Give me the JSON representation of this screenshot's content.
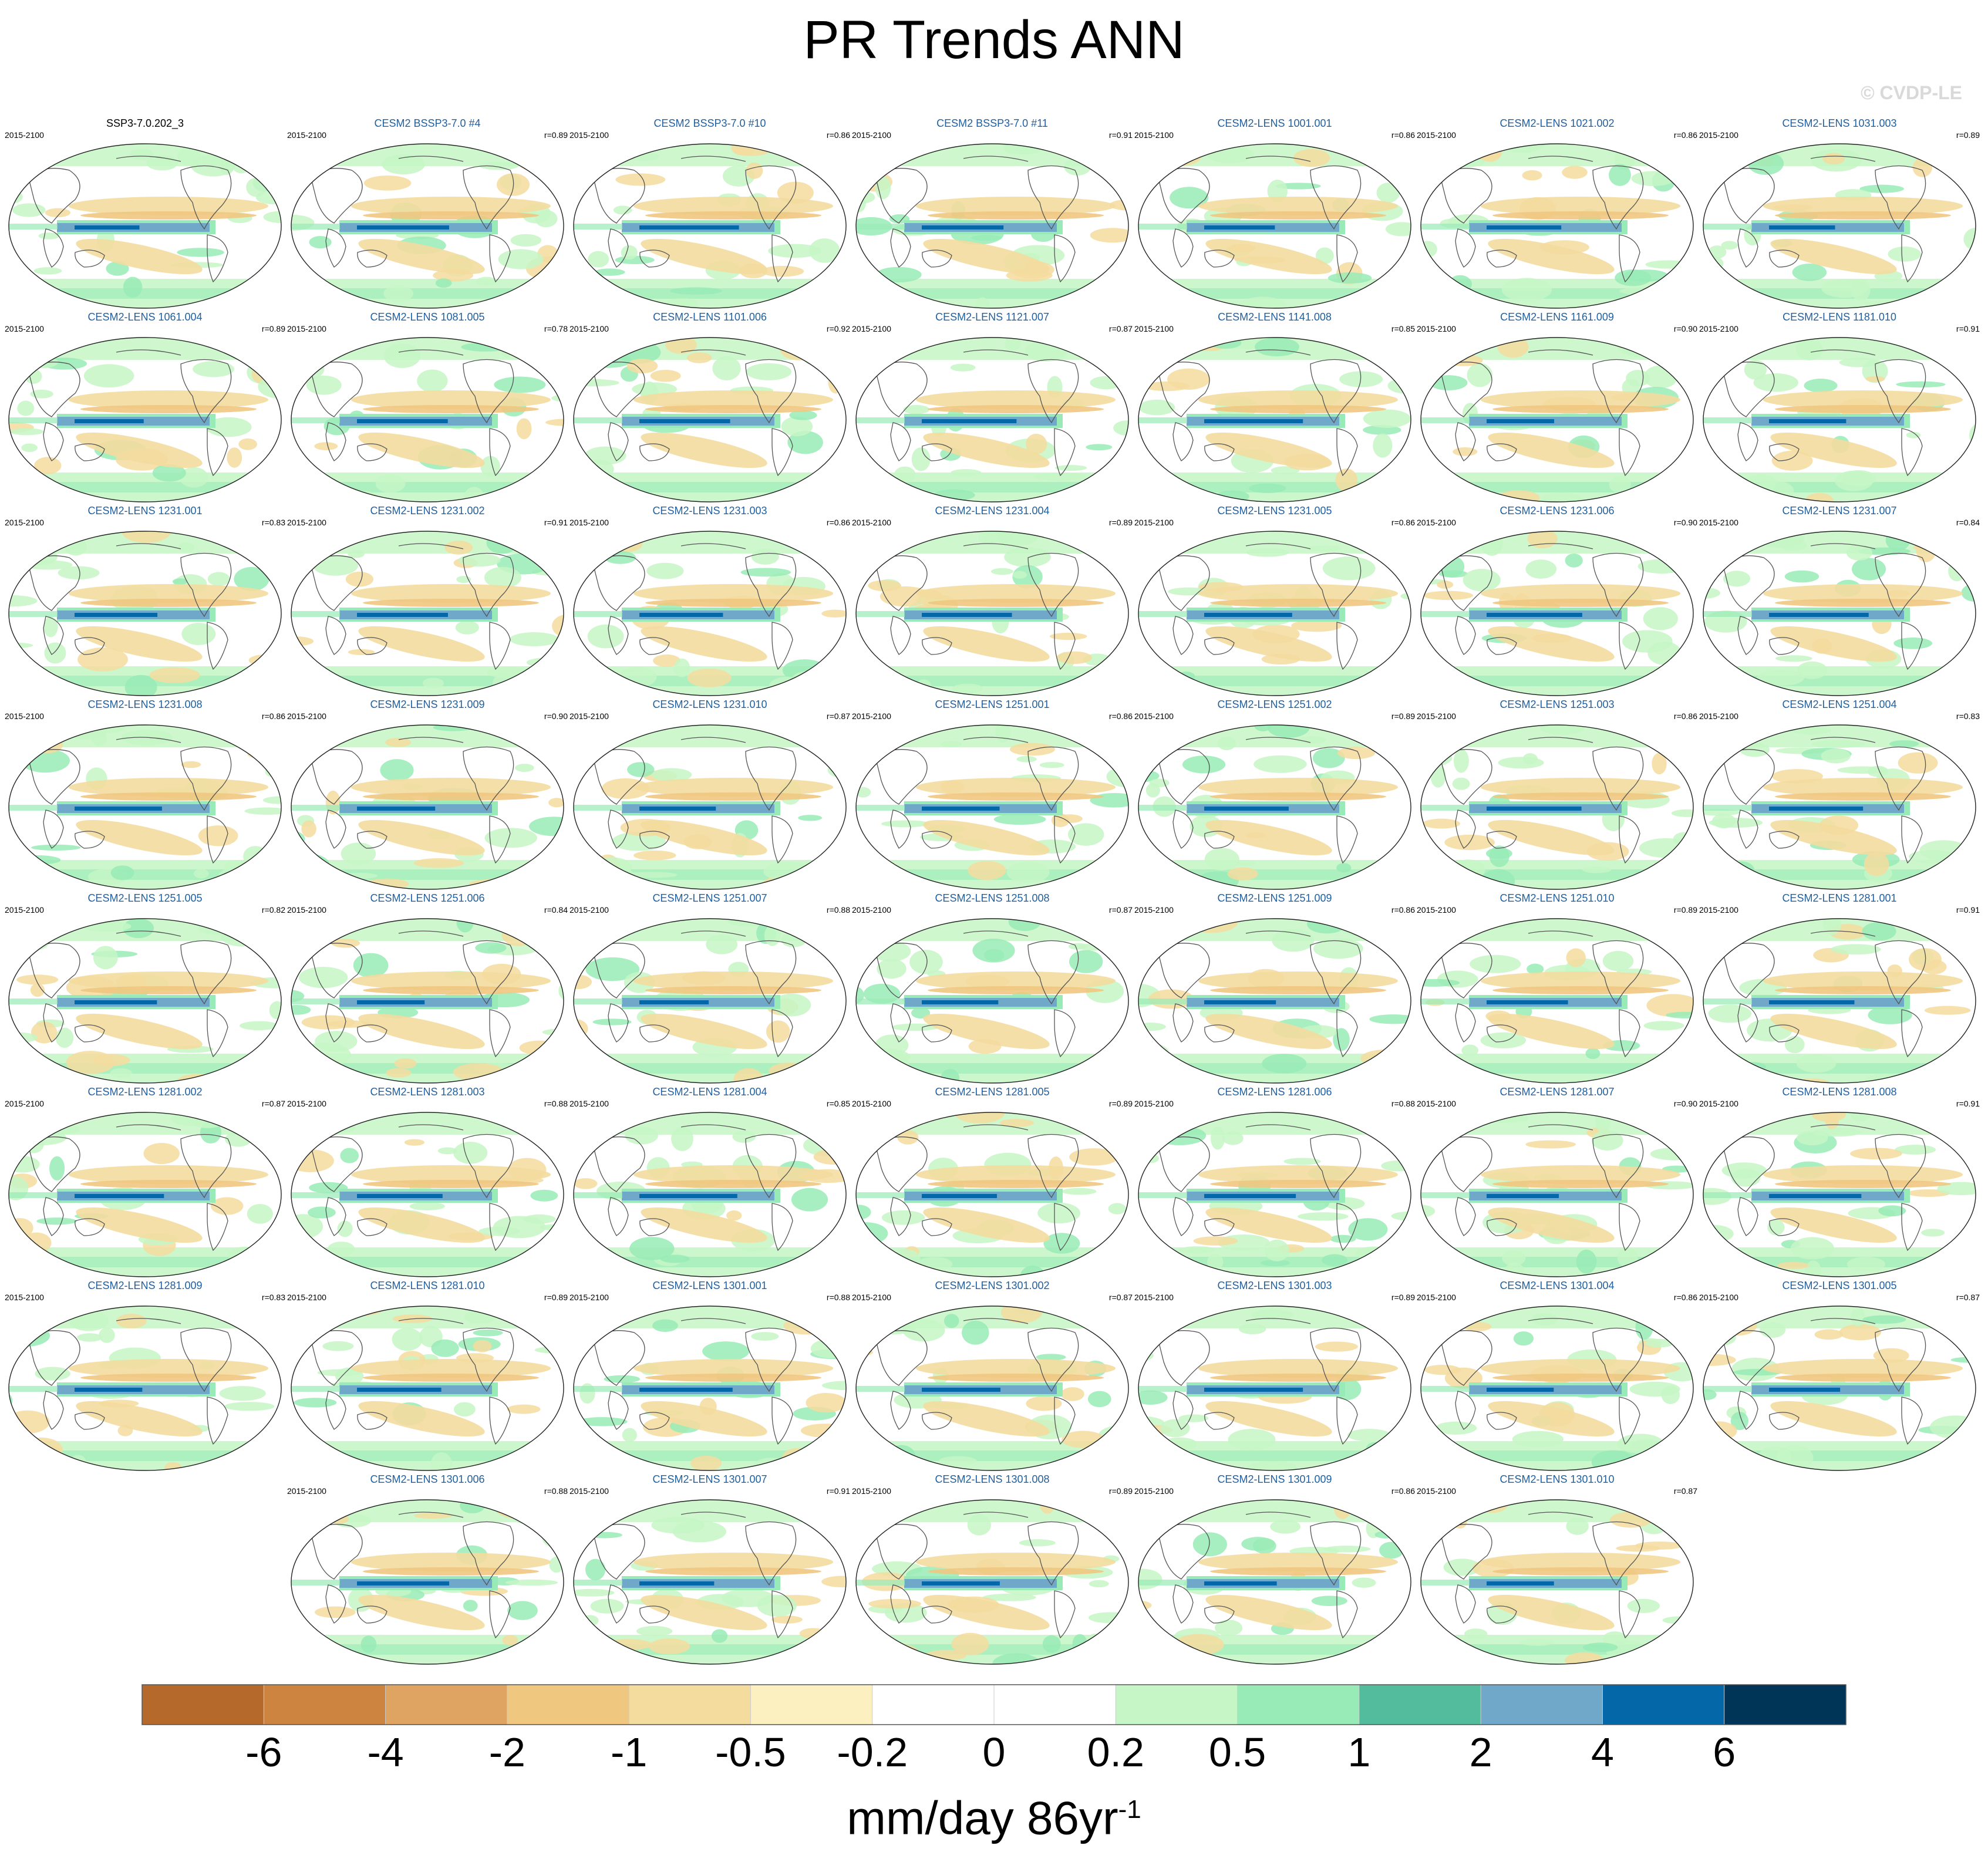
{
  "title": "PR Trends ANN",
  "watermark": "© CVDP-LE",
  "chart_data": {
    "type": "heatmap",
    "title": "PR Trends ANN",
    "panel_period": "2015-2100",
    "units_label": "mm/day 86yr",
    "units_exponent": "-1",
    "colorbar": {
      "tick_labels": [
        "-6",
        "-4",
        "-2",
        "-1",
        "-0.5",
        "-0.2",
        "0",
        "0.2",
        "0.5",
        "1",
        "2",
        "4",
        "6"
      ],
      "colors": [
        "#b5692a",
        "#cd8441",
        "#dfa362",
        "#f0c77f",
        "#f4dc9f",
        "#fdf0c0",
        "#ffffff",
        "#ffffff",
        "#c6f6c6",
        "#98ebb6",
        "#52bc9c",
        "#6fa8c8",
        "#0468a8",
        "#003558"
      ]
    },
    "panels": [
      {
        "name": "SSP3-7.0.202_3",
        "r": ""
      },
      {
        "name": "CESM2 BSSP3-7.0 #4",
        "r": "r=0.89"
      },
      {
        "name": "CESM2 BSSP3-7.0 #10",
        "r": "r=0.86"
      },
      {
        "name": "CESM2 BSSP3-7.0 #11",
        "r": "r=0.91"
      },
      {
        "name": "CESM2-LENS 1001.001",
        "r": "r=0.86"
      },
      {
        "name": "CESM2-LENS 1021.002",
        "r": "r=0.86"
      },
      {
        "name": "CESM2-LENS 1031.003",
        "r": "r=0.89"
      },
      {
        "name": "CESM2-LENS 1061.004",
        "r": "r=0.89"
      },
      {
        "name": "CESM2-LENS 1081.005",
        "r": "r=0.78"
      },
      {
        "name": "CESM2-LENS 1101.006",
        "r": "r=0.92"
      },
      {
        "name": "CESM2-LENS 1121.007",
        "r": "r=0.87"
      },
      {
        "name": "CESM2-LENS 1141.008",
        "r": "r=0.85"
      },
      {
        "name": "CESM2-LENS 1161.009",
        "r": "r=0.90"
      },
      {
        "name": "CESM2-LENS 1181.010",
        "r": "r=0.91"
      },
      {
        "name": "CESM2-LENS 1231.001",
        "r": "r=0.83"
      },
      {
        "name": "CESM2-LENS 1231.002",
        "r": "r=0.91"
      },
      {
        "name": "CESM2-LENS 1231.003",
        "r": "r=0.86"
      },
      {
        "name": "CESM2-LENS 1231.004",
        "r": "r=0.89"
      },
      {
        "name": "CESM2-LENS 1231.005",
        "r": "r=0.86"
      },
      {
        "name": "CESM2-LENS 1231.006",
        "r": "r=0.90"
      },
      {
        "name": "CESM2-LENS 1231.007",
        "r": "r=0.84"
      },
      {
        "name": "CESM2-LENS 1231.008",
        "r": "r=0.86"
      },
      {
        "name": "CESM2-LENS 1231.009",
        "r": "r=0.90"
      },
      {
        "name": "CESM2-LENS 1231.010",
        "r": "r=0.87"
      },
      {
        "name": "CESM2-LENS 1251.001",
        "r": "r=0.86"
      },
      {
        "name": "CESM2-LENS 1251.002",
        "r": "r=0.89"
      },
      {
        "name": "CESM2-LENS 1251.003",
        "r": "r=0.86"
      },
      {
        "name": "CESM2-LENS 1251.004",
        "r": "r=0.83"
      },
      {
        "name": "CESM2-LENS 1251.005",
        "r": "r=0.82"
      },
      {
        "name": "CESM2-LENS 1251.006",
        "r": "r=0.84"
      },
      {
        "name": "CESM2-LENS 1251.007",
        "r": "r=0.88"
      },
      {
        "name": "CESM2-LENS 1251.008",
        "r": "r=0.87"
      },
      {
        "name": "CESM2-LENS 1251.009",
        "r": "r=0.86"
      },
      {
        "name": "CESM2-LENS 1251.010",
        "r": "r=0.89"
      },
      {
        "name": "CESM2-LENS 1281.001",
        "r": "r=0.91"
      },
      {
        "name": "CESM2-LENS 1281.002",
        "r": "r=0.87"
      },
      {
        "name": "CESM2-LENS 1281.003",
        "r": "r=0.88"
      },
      {
        "name": "CESM2-LENS 1281.004",
        "r": "r=0.85"
      },
      {
        "name": "CESM2-LENS 1281.005",
        "r": "r=0.89"
      },
      {
        "name": "CESM2-LENS 1281.006",
        "r": "r=0.88"
      },
      {
        "name": "CESM2-LENS 1281.007",
        "r": "r=0.90"
      },
      {
        "name": "CESM2-LENS 1281.008",
        "r": "r=0.91"
      },
      {
        "name": "CESM2-LENS 1281.009",
        "r": "r=0.83"
      },
      {
        "name": "CESM2-LENS 1281.010",
        "r": "r=0.89"
      },
      {
        "name": "CESM2-LENS 1301.001",
        "r": "r=0.88"
      },
      {
        "name": "CESM2-LENS 1301.002",
        "r": "r=0.87"
      },
      {
        "name": "CESM2-LENS 1301.003",
        "r": "r=0.89"
      },
      {
        "name": "CESM2-LENS 1301.004",
        "r": "r=0.86"
      },
      {
        "name": "CESM2-LENS 1301.005",
        "r": "r=0.87"
      },
      {
        "name": "CESM2-LENS 1301.006",
        "r": "r=0.88"
      },
      {
        "name": "CESM2-LENS 1301.007",
        "r": "r=0.91"
      },
      {
        "name": "CESM2-LENS 1301.008",
        "r": "r=0.89"
      },
      {
        "name": "CESM2-LENS 1301.009",
        "r": "r=0.86"
      },
      {
        "name": "CESM2-LENS 1301.010",
        "r": "r=0.87"
      }
    ]
  }
}
